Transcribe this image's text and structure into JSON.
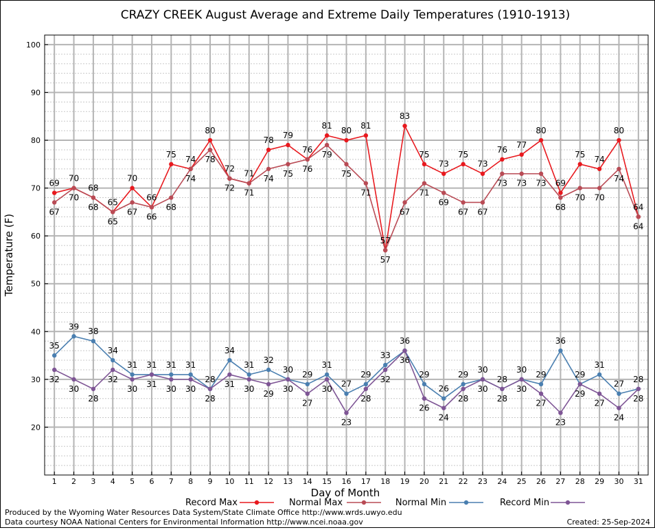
{
  "chart_data": {
    "type": "line",
    "title": "CRAZY CREEK August Average and Extreme Daily Temperatures (1910-1913)",
    "xlabel": "Day of Month",
    "ylabel": "Temperature (F)",
    "ylim": [
      10,
      102
    ],
    "xlim": [
      0.5,
      31.5
    ],
    "yticks": [
      20,
      30,
      40,
      50,
      60,
      70,
      80,
      90,
      100
    ],
    "x": [
      1,
      2,
      3,
      4,
      5,
      6,
      7,
      8,
      9,
      10,
      11,
      12,
      13,
      14,
      15,
      16,
      17,
      18,
      19,
      20,
      21,
      22,
      23,
      24,
      25,
      26,
      27,
      28,
      29,
      30,
      31
    ],
    "grid": true,
    "legend_position": "bottom",
    "series": [
      {
        "name": "Record Max",
        "color": "#e8191e",
        "values": [
          69,
          70,
          68,
          65,
          70,
          66,
          75,
          74,
          80,
          72,
          71,
          78,
          79,
          76,
          81,
          80,
          81,
          57,
          83,
          75,
          73,
          75,
          73,
          76,
          77,
          80,
          69,
          75,
          74,
          80,
          64
        ]
      },
      {
        "name": "Normal Max",
        "color": "#b94b55",
        "values": [
          67,
          70,
          68,
          65,
          67,
          66,
          68,
          74,
          78,
          72,
          71,
          74,
          75,
          76,
          79,
          75,
          71,
          57,
          67,
          71,
          69,
          67,
          67,
          73,
          73,
          73,
          68,
          70,
          70,
          74,
          64
        ]
      },
      {
        "name": "Normal Min",
        "color": "#4a7fb0",
        "values": [
          35,
          39,
          38,
          34,
          31,
          31,
          31,
          31,
          28,
          34,
          31,
          32,
          30,
          29,
          31,
          27,
          29,
          33,
          36,
          29,
          26,
          29,
          30,
          28,
          30,
          29,
          36,
          29,
          31,
          27,
          28
        ]
      },
      {
        "name": "Record Min",
        "color": "#7e5595",
        "values": [
          32,
          30,
          28,
          32,
          30,
          31,
          30,
          30,
          28,
          31,
          30,
          29,
          30,
          27,
          30,
          23,
          28,
          32,
          36,
          26,
          24,
          28,
          30,
          28,
          30,
          27,
          23,
          29,
          27,
          24,
          28
        ]
      }
    ]
  },
  "footer": {
    "produced_by": "Produced by the Wyoming Water Resources Data System/State Climate Office http://www.wrds.uwyo.edu",
    "courtesy": "Data courtesy NOAA National Centers for Environmental Information http://www.ncei.noaa.gov",
    "created": "Created:  25-Sep-2024"
  }
}
